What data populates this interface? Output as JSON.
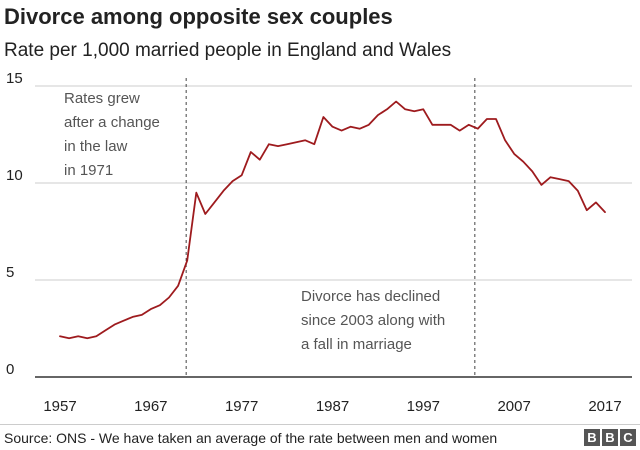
{
  "header": {
    "title": "Divorce among opposite sex couples",
    "subtitle": "Rate per 1,000 married people in England and Wales"
  },
  "footer": {
    "source": "Source: ONS - We have taken an average of the rate between men and women",
    "logo": [
      "B",
      "B",
      "C"
    ]
  },
  "colors": {
    "line": "#9e1b1e",
    "grid": "#cccccc",
    "axis": "#333333",
    "text": "#222222",
    "annotation": "#555555"
  },
  "chart_data": {
    "type": "line",
    "title": "Divorce among opposite sex couples",
    "subtitle": "Rate per 1,000 married people in England and Wales",
    "xlabel": "",
    "ylabel": "",
    "xlim": [
      1957,
      2017
    ],
    "ylim": [
      0,
      15
    ],
    "x_ticks": [
      1957,
      1967,
      1977,
      1987,
      1997,
      2007,
      2017
    ],
    "y_ticks": [
      0,
      5,
      10,
      15
    ],
    "grid": "horizontal",
    "x": [
      1957,
      1958,
      1959,
      1960,
      1961,
      1962,
      1963,
      1964,
      1965,
      1966,
      1967,
      1968,
      1969,
      1970,
      1971,
      1972,
      1973,
      1974,
      1975,
      1976,
      1977,
      1978,
      1979,
      1980,
      1981,
      1982,
      1983,
      1984,
      1985,
      1986,
      1987,
      1988,
      1989,
      1990,
      1991,
      1992,
      1993,
      1994,
      1995,
      1996,
      1997,
      1998,
      1999,
      2000,
      2001,
      2002,
      2003,
      2004,
      2005,
      2006,
      2007,
      2008,
      2009,
      2010,
      2011,
      2012,
      2013,
      2014,
      2015,
      2016,
      2017
    ],
    "y": [
      2.1,
      2.0,
      2.1,
      2.0,
      2.1,
      2.4,
      2.7,
      2.9,
      3.1,
      3.2,
      3.5,
      3.7,
      4.1,
      4.7,
      6.0,
      9.5,
      8.4,
      9.0,
      9.6,
      10.1,
      10.4,
      11.6,
      11.2,
      12.0,
      11.9,
      12.0,
      12.1,
      12.2,
      12.0,
      13.4,
      12.9,
      12.7,
      12.9,
      12.8,
      13.0,
      13.5,
      13.8,
      14.2,
      13.8,
      13.7,
      13.8,
      13.0,
      13.0,
      13.0,
      12.7,
      13.0,
      12.8,
      13.3,
      13.3,
      12.2,
      11.5,
      11.1,
      10.6,
      9.9,
      10.3,
      10.2,
      10.1,
      9.6,
      8.6,
      9.0,
      8.5
    ],
    "markers": [
      {
        "x": 1971,
        "text": [
          "Rates grew",
          "after a change",
          "in the law",
          "in 1971"
        ]
      },
      {
        "x": 2003,
        "text": [
          "Divorce has declined",
          "since 2003 along with",
          "a fall in marriage"
        ]
      }
    ]
  }
}
